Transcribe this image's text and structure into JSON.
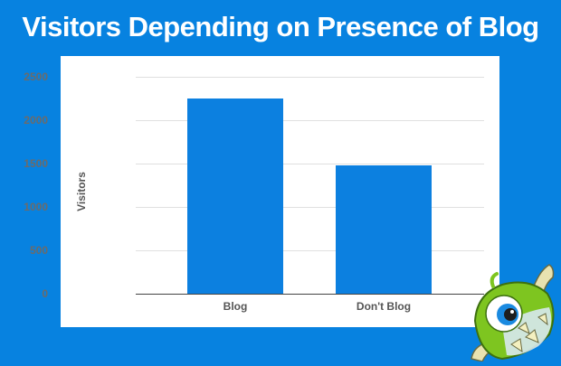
{
  "header": {
    "title": "Visitors Depending on Presence of Blog"
  },
  "colors": {
    "background": "#0782e0",
    "panel": "#ffffff",
    "bar": "#0c80e0",
    "gridline": "#e0e0e0",
    "tick_text": "#6b6b6b"
  },
  "chart_data": {
    "type": "bar",
    "title": "Visitors Depending on Presence of Blog",
    "categories": [
      "Blog",
      "Don't Blog"
    ],
    "values": [
      2250,
      1475
    ],
    "xlabel": "",
    "ylabel": "Visitors",
    "ylim": [
      0,
      2500
    ],
    "yticks": [
      0,
      500,
      1000,
      1500,
      2000,
      2500
    ],
    "grid": true,
    "legend": null
  },
  "axis": {
    "ylabel": "Visitors",
    "ticks": [
      "2500",
      "2000",
      "1500",
      "1000",
      "500",
      "0"
    ],
    "categories": [
      "Blog",
      "Don't Blog"
    ]
  },
  "logo": {
    "icon": "monster-mascot-icon"
  }
}
